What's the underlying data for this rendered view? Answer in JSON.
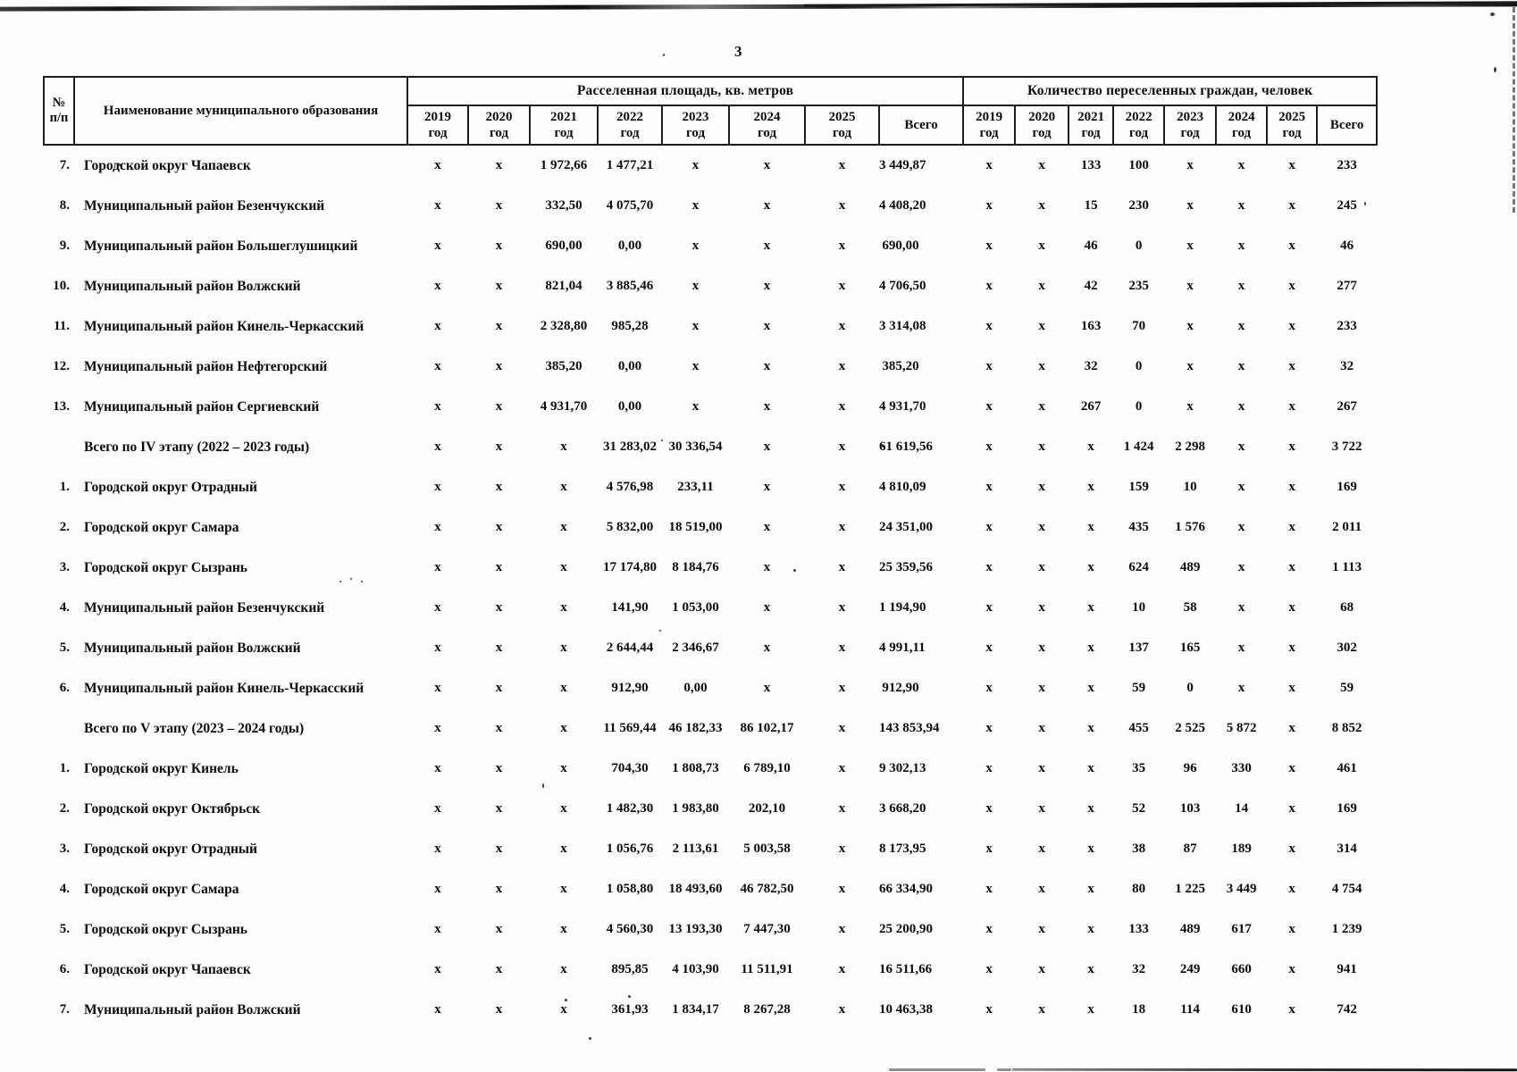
{
  "page": {
    "number": "3"
  },
  "table": {
    "header": {
      "num_line1": "№",
      "num_line2": "п/п",
      "name": "Наименование муниципального образования",
      "group_area": "Расселенная площадь, кв. метров",
      "group_people": "Количество переселенных граждан, человек",
      "years": [
        "2019",
        "2020",
        "2021",
        "2022",
        "2023",
        "2024",
        "2025"
      ],
      "year_word": "год",
      "total_label": "Всего"
    },
    "rows": [
      {
        "num": "7.",
        "name": "Городской округ Чапаевск",
        "area": [
          "x",
          "x",
          "1 972,66",
          "1 477,21",
          "x",
          "x",
          "x",
          "3 449,87"
        ],
        "people": [
          "x",
          "x",
          "133",
          "100",
          "x",
          "x",
          "x",
          "233"
        ]
      },
      {
        "num": "8.",
        "name": "Муниципальный район Безенчукский",
        "area": [
          "x",
          "x",
          "332,50",
          "4 075,70",
          "x",
          "x",
          "x",
          "4 408,20"
        ],
        "people": [
          "x",
          "x",
          "15",
          "230",
          "x",
          "x",
          "x",
          "245"
        ]
      },
      {
        "num": "9.",
        "name": "Муниципальный район Большеглушицкий",
        "area": [
          "x",
          "x",
          "690,00",
          "0,00",
          "x",
          "x",
          "x",
          "690,00"
        ],
        "people": [
          "x",
          "x",
          "46",
          "0",
          "x",
          "x",
          "x",
          "46"
        ]
      },
      {
        "num": "10.",
        "name": "Муниципальный район Волжский",
        "area": [
          "x",
          "x",
          "821,04",
          "3 885,46",
          "x",
          "x",
          "x",
          "4 706,50"
        ],
        "people": [
          "x",
          "x",
          "42",
          "235",
          "x",
          "x",
          "x",
          "277"
        ]
      },
      {
        "num": "11.",
        "name": "Муниципальный район Кинель-Черкасский",
        "area": [
          "x",
          "x",
          "2 328,80",
          "985,28",
          "x",
          "x",
          "x",
          "3 314,08"
        ],
        "people": [
          "x",
          "x",
          "163",
          "70",
          "x",
          "x",
          "x",
          "233"
        ]
      },
      {
        "num": "12.",
        "name": "Муниципальный район Нефтегорский",
        "area": [
          "x",
          "x",
          "385,20",
          "0,00",
          "x",
          "x",
          "x",
          "385,20"
        ],
        "people": [
          "x",
          "x",
          "32",
          "0",
          "x",
          "x",
          "x",
          "32"
        ]
      },
      {
        "num": "13.",
        "name": "Муниципальный район Сергиевский",
        "area": [
          "x",
          "x",
          "4 931,70",
          "0,00",
          "x",
          "x",
          "x",
          "4 931,70"
        ],
        "people": [
          "x",
          "x",
          "267",
          "0",
          "x",
          "x",
          "x",
          "267"
        ]
      },
      {
        "num": "",
        "name": "Всего по IV этапу (2022 – 2023 годы)",
        "is_total": true,
        "area": [
          "x",
          "x",
          "x",
          "31 283,02",
          "30 336,54",
          "x",
          "x",
          "61 619,56"
        ],
        "people": [
          "x",
          "x",
          "x",
          "1 424",
          "2 298",
          "x",
          "x",
          "3 722"
        ]
      },
      {
        "num": "1.",
        "name": "Городской округ Отрадный",
        "area": [
          "x",
          "x",
          "x",
          "4 576,98",
          "233,11",
          "x",
          "x",
          "4 810,09"
        ],
        "people": [
          "x",
          "x",
          "x",
          "159",
          "10",
          "x",
          "x",
          "169"
        ]
      },
      {
        "num": "2.",
        "name": "Городской округ Самара",
        "area": [
          "x",
          "x",
          "x",
          "5 832,00",
          "18 519,00",
          "x",
          "x",
          "24 351,00"
        ],
        "people": [
          "x",
          "x",
          "x",
          "435",
          "1 576",
          "x",
          "x",
          "2 011"
        ]
      },
      {
        "num": "3.",
        "name": "Городской округ Сызрань",
        "area": [
          "x",
          "x",
          "x",
          "17 174,80",
          "8 184,76",
          "x",
          "x",
          "25 359,56"
        ],
        "people": [
          "x",
          "x",
          "x",
          "624",
          "489",
          "x",
          "x",
          "1 113"
        ]
      },
      {
        "num": "4.",
        "name": "Муниципальный район Безенчукский",
        "area": [
          "x",
          "x",
          "x",
          "141,90",
          "1 053,00",
          "x",
          "x",
          "1 194,90"
        ],
        "people": [
          "x",
          "x",
          "x",
          "10",
          "58",
          "x",
          "x",
          "68"
        ]
      },
      {
        "num": "5.",
        "name": "Муниципальный район Волжский",
        "area": [
          "x",
          "x",
          "x",
          "2 644,44",
          "2 346,67",
          "x",
          "x",
          "4 991,11"
        ],
        "people": [
          "x",
          "x",
          "x",
          "137",
          "165",
          "x",
          "x",
          "302"
        ]
      },
      {
        "num": "6.",
        "name": "Муниципальный район Кинель-Черкасский",
        "area": [
          "x",
          "x",
          "x",
          "912,90",
          "0,00",
          "x",
          "x",
          "912,90"
        ],
        "people": [
          "x",
          "x",
          "x",
          "59",
          "0",
          "x",
          "x",
          "59"
        ]
      },
      {
        "num": "",
        "name": "Всего по V этапу (2023 – 2024 годы)",
        "is_total": true,
        "area": [
          "x",
          "x",
          "x",
          "11 569,44",
          "46 182,33",
          "86 102,17",
          "x",
          "143 853,94"
        ],
        "people": [
          "x",
          "x",
          "x",
          "455",
          "2 525",
          "5 872",
          "x",
          "8 852"
        ]
      },
      {
        "num": "1.",
        "name": "Городской округ Кинель",
        "area": [
          "x",
          "x",
          "x",
          "704,30",
          "1 808,73",
          "6 789,10",
          "x",
          "9 302,13"
        ],
        "people": [
          "x",
          "x",
          "x",
          "35",
          "96",
          "330",
          "x",
          "461"
        ]
      },
      {
        "num": "2.",
        "name": "Городской округ Октябрьск",
        "area": [
          "x",
          "x",
          "x",
          "1 482,30",
          "1 983,80",
          "202,10",
          "x",
          "3 668,20"
        ],
        "people": [
          "x",
          "x",
          "x",
          "52",
          "103",
          "14",
          "x",
          "169"
        ]
      },
      {
        "num": "3.",
        "name": "Городской округ Отрадный",
        "area": [
          "x",
          "x",
          "x",
          "1 056,76",
          "2 113,61",
          "5 003,58",
          "x",
          "8 173,95"
        ],
        "people": [
          "x",
          "x",
          "x",
          "38",
          "87",
          "189",
          "x",
          "314"
        ]
      },
      {
        "num": "4.",
        "name": "Городской округ Самара",
        "area": [
          "x",
          "x",
          "x",
          "1 058,80",
          "18 493,60",
          "46 782,50",
          "x",
          "66 334,90"
        ],
        "people": [
          "x",
          "x",
          "x",
          "80",
          "1 225",
          "3 449",
          "x",
          "4 754"
        ]
      },
      {
        "num": "5.",
        "name": "Городской округ Сызрань",
        "area": [
          "x",
          "x",
          "x",
          "4 560,30",
          "13 193,30",
          "7 447,30",
          "x",
          "25 200,90"
        ],
        "people": [
          "x",
          "x",
          "x",
          "133",
          "489",
          "617",
          "x",
          "1 239"
        ]
      },
      {
        "num": "6.",
        "name": "Городской округ Чапаевск",
        "area": [
          "x",
          "x",
          "x",
          "895,85",
          "4 103,90",
          "11 511,91",
          "x",
          "16 511,66"
        ],
        "people": [
          "x",
          "x",
          "x",
          "32",
          "249",
          "660",
          "x",
          "941"
        ]
      },
      {
        "num": "7.",
        "name": "Муниципальный район Волжский",
        "area": [
          "x",
          "x",
          "x",
          "361,93",
          "1 834,17",
          "8 267,28",
          "x",
          "10 463,38"
        ],
        "people": [
          "x",
          "x",
          "x",
          "18",
          "114",
          "610",
          "x",
          "742"
        ]
      }
    ]
  }
}
